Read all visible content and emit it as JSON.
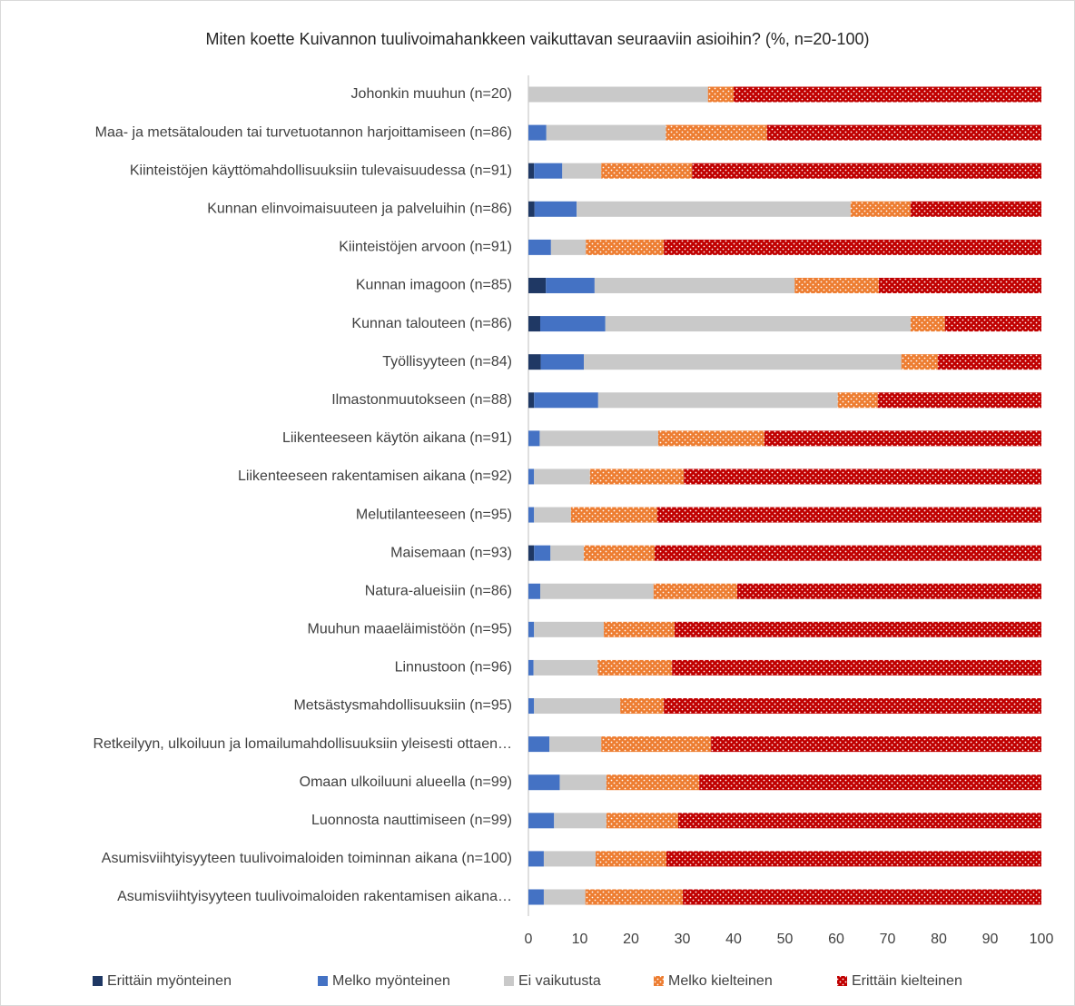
{
  "chart_data": {
    "type": "stacked-bar-horizontal",
    "title": "Miten koette Kuivannon tuulivoimahankkeen vaikuttavan seuraaviin asioihin? (%, n=20-100)",
    "categories": [
      "Johonkin muuhun (n=20)",
      "Maa- ja metsätalouden tai turvetuotannon harjoittamiseen (n=86)",
      "Kiinteistöjen käyttömahdollisuuksiin tulevaisuudessa (n=91)",
      "Kunnan elinvoimaisuuteen ja palveluihin (n=86)",
      "Kiinteistöjen arvoon (n=91)",
      "Kunnan imagoon (n=85)",
      "Kunnan talouteen (n=86)",
      "Työllisyyteen (n=84)",
      "Ilmastonmuutokseen (n=88)",
      "Liikenteeseen käytön aikana (n=91)",
      "Liikenteeseen rakentamisen aikana (n=92)",
      "Melutilanteeseen (n=95)",
      "Maisemaan (n=93)",
      "Natura-alueisiin (n=86)",
      "Muuhun maaeläimistöön (n=95)",
      "Linnustoon (n=96)",
      "Metsästysmahdollisuuksiin (n=95)",
      "Retkeilyyn, ulkoiluun ja lomailumahdollisuuksiin yleisesti ottaen…",
      "Omaan ulkoiluuni alueella (n=99)",
      "Luonnosta nauttimiseen (n=99)",
      "Asumisviihtyisyyteen tuulivoimaloiden toiminnan aikana (n=100)",
      "Asumisviihtyisyyteen tuulivoimaloiden rakentamisen aikana…"
    ],
    "series": [
      {
        "name": "Erittäin myönteinen",
        "color": "#1f3864",
        "pattern": "none",
        "values": [
          0,
          0,
          1.1,
          1.2,
          0,
          3.4,
          2.3,
          2.4,
          1.1,
          0,
          0,
          0,
          1.1,
          0,
          0,
          0,
          0,
          0,
          0,
          0,
          0,
          0
        ]
      },
      {
        "name": "Melko myönteinen",
        "color": "#4472c4",
        "pattern": "none",
        "values": [
          0,
          3.5,
          5.5,
          8.2,
          4.4,
          9.5,
          12.7,
          8.4,
          12.5,
          2.2,
          1.1,
          1.1,
          3.2,
          2.3,
          1.1,
          1,
          1.1,
          4.1,
          6.1,
          5,
          3,
          3
        ]
      },
      {
        "name": "Ei vaikutusta",
        "color": "#c9c9c9",
        "pattern": "none",
        "values": [
          35,
          23.3,
          7.6,
          53.4,
          6.8,
          39,
          59.5,
          61.9,
          46.7,
          23.1,
          10.9,
          7.2,
          6.5,
          22.1,
          13.6,
          12.5,
          16.8,
          10.1,
          9.1,
          10.2,
          10.1,
          8.1
        ]
      },
      {
        "name": "Melko kielteinen",
        "color": "#ed7d31",
        "pattern": "dots",
        "values": [
          5,
          19.7,
          17.7,
          11.7,
          15.2,
          16.4,
          6.7,
          7.1,
          7.8,
          20.7,
          18.3,
          16.8,
          13.8,
          16.3,
          13.8,
          14.5,
          8.5,
          21.4,
          18.1,
          14,
          13.8,
          19
        ]
      },
      {
        "name": "Erittäin kielteinen",
        "color": "#c00000",
        "pattern": "dots",
        "values": [
          60,
          53.5,
          68.1,
          25.5,
          73.6,
          31.7,
          18.8,
          20.2,
          31.9,
          54,
          69.7,
          74.9,
          75.4,
          59.3,
          71.5,
          72,
          73.6,
          64.4,
          66.7,
          70.8,
          73.1,
          69.9
        ]
      }
    ],
    "xlim": [
      0,
      100
    ],
    "xticks": [
      0,
      10,
      20,
      30,
      40,
      50,
      60,
      70,
      80,
      90,
      100
    ],
    "grid": false,
    "legend": "bottom"
  }
}
